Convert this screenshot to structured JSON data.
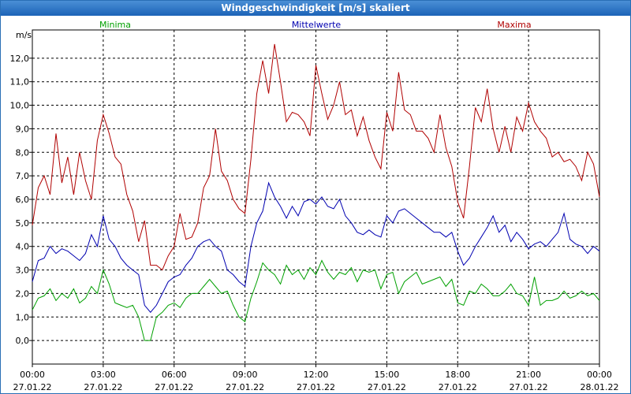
{
  "chart_data": {
    "type": "line",
    "title": "Windgeschwindigkeit [m/s] skaliert",
    "ylabel": "m/s",
    "ylim": [
      -1.0,
      13.2
    ],
    "y_ticks": [
      "0,0",
      "1,0",
      "2,0",
      "3,0",
      "4,0",
      "5,0",
      "6,0",
      "7,0",
      "8,0",
      "9,0",
      "10,0",
      "11,0",
      "12,0"
    ],
    "x_range_hours": [
      0,
      24
    ],
    "x_ticks": [
      {
        "time": "00:00",
        "date": "27.01.22"
      },
      {
        "time": "03:00",
        "date": "27.01.22"
      },
      {
        "time": "06:00",
        "date": "27.01.22"
      },
      {
        "time": "09:00",
        "date": "27.01.22"
      },
      {
        "time": "12:00",
        "date": "27.01.22"
      },
      {
        "time": "15:00",
        "date": "27.01.22"
      },
      {
        "time": "18:00",
        "date": "27.01.22"
      },
      {
        "time": "21:00",
        "date": "27.01.22"
      },
      {
        "time": "00:00",
        "date": "28.01.22"
      }
    ],
    "grid": true,
    "series": [
      {
        "name": "Minima",
        "color": "#00a000",
        "x": [
          0.0,
          0.25,
          0.5,
          0.75,
          1.0,
          1.25,
          1.5,
          1.75,
          2.0,
          2.25,
          2.5,
          2.75,
          3.0,
          3.25,
          3.5,
          3.75,
          4.0,
          4.25,
          4.5,
          4.75,
          5.0,
          5.25,
          5.5,
          5.75,
          6.0,
          6.25,
          6.5,
          6.75,
          7.0,
          7.25,
          7.5,
          7.75,
          8.0,
          8.25,
          8.5,
          8.75,
          9.0,
          9.25,
          9.5,
          9.75,
          10.0,
          10.25,
          10.5,
          10.75,
          11.0,
          11.25,
          11.5,
          11.75,
          12.0,
          12.25,
          12.5,
          12.75,
          13.0,
          13.25,
          13.5,
          13.75,
          14.0,
          14.25,
          14.5,
          14.75,
          15.0,
          15.25,
          15.5,
          15.75,
          16.0,
          16.25,
          16.5,
          16.75,
          17.0,
          17.25,
          17.5,
          17.75,
          18.0,
          18.25,
          18.5,
          18.75,
          19.0,
          19.25,
          19.5,
          19.75,
          20.0,
          20.25,
          20.5,
          20.75,
          21.0,
          21.25,
          21.5,
          21.75,
          22.0,
          22.25,
          22.5,
          22.75,
          23.0,
          23.25,
          23.5,
          23.75,
          24.0
        ],
        "values": [
          1.3,
          1.8,
          1.9,
          2.2,
          1.7,
          2.0,
          1.8,
          2.2,
          1.6,
          1.8,
          2.3,
          2.0,
          3.0,
          2.4,
          1.6,
          1.5,
          1.4,
          1.5,
          1.0,
          0.0,
          0.0,
          1.0,
          1.2,
          1.5,
          1.6,
          1.4,
          1.8,
          2.0,
          2.0,
          2.3,
          2.6,
          2.3,
          2.0,
          2.1,
          1.5,
          1.0,
          0.8,
          1.8,
          2.5,
          3.3,
          3.0,
          2.8,
          2.4,
          3.2,
          2.8,
          3.0,
          2.6,
          3.1,
          2.8,
          3.4,
          2.9,
          2.6,
          2.9,
          2.8,
          3.1,
          2.5,
          3.0,
          2.9,
          3.0,
          2.2,
          2.8,
          2.9,
          2.0,
          2.5,
          2.7,
          2.9,
          2.4,
          2.5,
          2.6,
          2.7,
          2.3,
          2.6,
          1.6,
          1.5,
          2.1,
          2.0,
          2.4,
          2.2,
          1.9,
          1.9,
          2.1,
          2.4,
          2.0,
          1.9,
          1.5,
          2.7,
          1.5,
          1.7,
          1.7,
          1.8,
          2.1,
          1.8,
          1.9,
          2.1,
          1.9,
          2.0,
          1.7
        ]
      },
      {
        "name": "Mittelwerte",
        "color": "#0000b0",
        "x": [
          0.0,
          0.25,
          0.5,
          0.75,
          1.0,
          1.25,
          1.5,
          1.75,
          2.0,
          2.25,
          2.5,
          2.75,
          3.0,
          3.25,
          3.5,
          3.75,
          4.0,
          4.25,
          4.5,
          4.75,
          5.0,
          5.25,
          5.5,
          5.75,
          6.0,
          6.25,
          6.5,
          6.75,
          7.0,
          7.25,
          7.5,
          7.75,
          8.0,
          8.25,
          8.5,
          8.75,
          9.0,
          9.25,
          9.5,
          9.75,
          10.0,
          10.25,
          10.5,
          10.75,
          11.0,
          11.25,
          11.5,
          11.75,
          12.0,
          12.25,
          12.5,
          12.75,
          13.0,
          13.25,
          13.5,
          13.75,
          14.0,
          14.25,
          14.5,
          14.75,
          15.0,
          15.25,
          15.5,
          15.75,
          16.0,
          16.25,
          16.5,
          16.75,
          17.0,
          17.25,
          17.5,
          17.75,
          18.0,
          18.25,
          18.5,
          18.75,
          19.0,
          19.25,
          19.5,
          19.75,
          20.0,
          20.25,
          20.5,
          20.75,
          21.0,
          21.25,
          21.5,
          21.75,
          22.0,
          22.25,
          22.5,
          22.75,
          23.0,
          23.25,
          23.5,
          23.75,
          24.0
        ],
        "values": [
          2.5,
          3.4,
          3.5,
          4.0,
          3.7,
          3.9,
          3.8,
          3.6,
          3.4,
          3.7,
          4.5,
          4.0,
          5.3,
          4.3,
          4.0,
          3.5,
          3.2,
          3.0,
          2.8,
          1.5,
          1.2,
          1.5,
          2.0,
          2.5,
          2.7,
          2.8,
          3.2,
          3.5,
          4.0,
          4.2,
          4.3,
          4.0,
          3.8,
          3.0,
          2.8,
          2.5,
          2.3,
          4.0,
          5.0,
          5.5,
          6.7,
          6.1,
          5.7,
          5.2,
          5.7,
          5.3,
          5.9,
          6.0,
          5.8,
          6.1,
          5.7,
          5.6,
          6.0,
          5.3,
          5.0,
          4.6,
          4.5,
          4.7,
          4.5,
          4.4,
          5.3,
          5.0,
          5.5,
          5.6,
          5.4,
          5.2,
          5.0,
          4.8,
          4.6,
          4.6,
          4.4,
          4.6,
          3.8,
          3.2,
          3.5,
          4.0,
          4.4,
          4.8,
          5.3,
          4.6,
          4.9,
          4.2,
          4.6,
          4.3,
          3.9,
          4.1,
          4.2,
          4.0,
          4.3,
          4.6,
          5.4,
          4.3,
          4.1,
          4.0,
          3.7,
          4.0,
          3.8
        ]
      },
      {
        "name": "Maxima",
        "color": "#b00000",
        "x": [
          0.0,
          0.25,
          0.5,
          0.75,
          1.0,
          1.25,
          1.5,
          1.75,
          2.0,
          2.25,
          2.5,
          2.75,
          3.0,
          3.25,
          3.5,
          3.75,
          4.0,
          4.25,
          4.5,
          4.75,
          5.0,
          5.25,
          5.5,
          5.75,
          6.0,
          6.25,
          6.5,
          6.75,
          7.0,
          7.25,
          7.5,
          7.75,
          8.0,
          8.25,
          8.5,
          8.75,
          9.0,
          9.25,
          9.5,
          9.75,
          10.0,
          10.25,
          10.5,
          10.75,
          11.0,
          11.25,
          11.5,
          11.75,
          12.0,
          12.25,
          12.5,
          12.75,
          13.0,
          13.25,
          13.5,
          13.75,
          14.0,
          14.25,
          14.5,
          14.75,
          15.0,
          15.25,
          15.5,
          15.75,
          16.0,
          16.25,
          16.5,
          16.75,
          17.0,
          17.25,
          17.5,
          17.75,
          18.0,
          18.25,
          18.5,
          18.75,
          19.0,
          19.25,
          19.5,
          19.75,
          20.0,
          20.25,
          20.5,
          20.75,
          21.0,
          21.25,
          21.5,
          21.75,
          22.0,
          22.25,
          22.5,
          22.75,
          23.0,
          23.25,
          23.5,
          23.75,
          24.0
        ],
        "values": [
          4.9,
          6.5,
          7.0,
          6.2,
          8.8,
          6.7,
          7.8,
          6.2,
          8.0,
          6.8,
          6.0,
          8.5,
          9.6,
          8.8,
          7.8,
          7.5,
          6.2,
          5.5,
          4.2,
          5.1,
          3.2,
          3.2,
          3.0,
          3.6,
          4.0,
          5.4,
          4.3,
          4.4,
          5.0,
          6.5,
          7.0,
          9.0,
          7.2,
          6.8,
          6.0,
          5.6,
          5.4,
          7.7,
          10.5,
          11.9,
          10.5,
          12.6,
          11.0,
          9.3,
          9.7,
          9.6,
          9.3,
          8.7,
          11.7,
          10.5,
          9.4,
          10.0,
          11.0,
          9.6,
          9.8,
          8.7,
          9.5,
          8.5,
          7.8,
          7.3,
          9.7,
          8.9,
          11.4,
          9.8,
          9.6,
          8.9,
          8.9,
          8.6,
          8.0,
          9.6,
          8.2,
          7.4,
          5.9,
          5.2,
          7.4,
          9.9,
          9.3,
          10.7,
          9.0,
          8.0,
          9.1,
          8.0,
          9.5,
          8.9,
          10.1,
          9.3,
          8.9,
          8.6,
          7.8,
          8.0,
          7.6,
          7.7,
          7.4,
          6.8,
          8.0,
          7.5,
          6.1
        ]
      }
    ]
  }
}
